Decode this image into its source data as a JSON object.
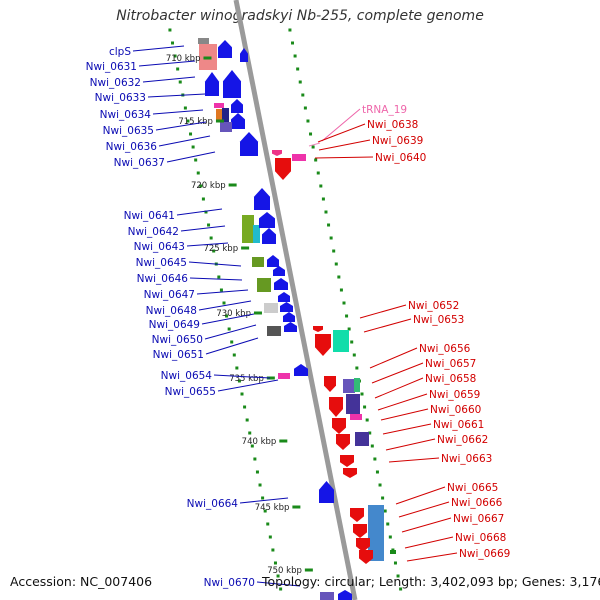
{
  "title": "Nitrobacter winogradskyi Nb-255, complete genome",
  "footer": {
    "accession": "Accession: NC_007406",
    "summary": "Topology: circular; Length: 3,402,093 bp; Genes: 3,176"
  },
  "colors": {
    "backbone": "#9a9a9a",
    "tick": "#1a8a1a",
    "left_label": "#0b0bb3",
    "right_label": "#d20000",
    "rna_label": "#ee66aa",
    "forward_arrow": "#1515e6",
    "reverse_arrow": "#e60d0d"
  },
  "scale_ticks": [
    {
      "label": "710 kbp"
    },
    {
      "label": "715 kbp"
    },
    {
      "label": "720 kbp"
    },
    {
      "label": "725 kbp"
    },
    {
      "label": "730 kbp"
    },
    {
      "label": "735 kbp"
    },
    {
      "label": "740 kbp"
    },
    {
      "label": "745 kbp"
    },
    {
      "label": "750 kbp"
    }
  ],
  "left_genes": [
    "clpS",
    "Nwi_0631",
    "Nwi_0632",
    "Nwi_0633",
    "Nwi_0634",
    "Nwi_0635",
    "Nwi_0636",
    "Nwi_0637",
    "Nwi_0641",
    "Nwi_0642",
    "Nwi_0643",
    "Nwi_0645",
    "Nwi_0646",
    "Nwi_0647",
    "Nwi_0648",
    "Nwi_0649",
    "Nwi_0650",
    "Nwi_0651",
    "Nwi_0654",
    "Nwi_0655",
    "Nwi_0664",
    "Nwi_0670"
  ],
  "right_genes": [
    "tRNA_19",
    "Nwi_0638",
    "Nwi_0639",
    "Nwi_0640",
    "Nwi_0652",
    "Nwi_0653",
    "Nwi_0656",
    "Nwi_0657",
    "Nwi_0658",
    "Nwi_0659",
    "Nwi_0660",
    "Nwi_0661",
    "Nwi_0662",
    "Nwi_0663",
    "Nwi_0665",
    "Nwi_0666",
    "Nwi_0667",
    "Nwi_0668",
    "Nwi_0669"
  ]
}
